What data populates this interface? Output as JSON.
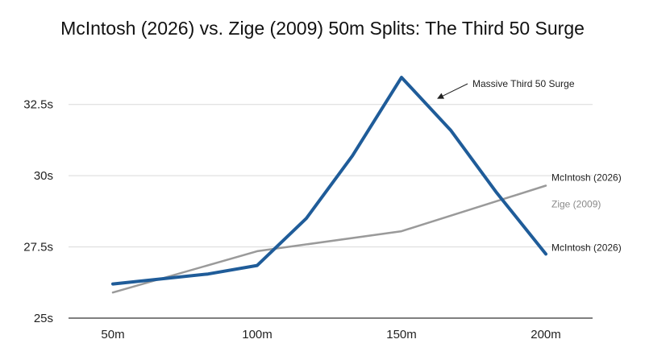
{
  "chart_data": {
    "type": "line",
    "title": "McIntosh (2026) vs. Zige (2009) 50m Splits: The Third 50 Surge",
    "xlabel": "",
    "ylabel": "",
    "x": [
      50,
      100,
      150,
      200
    ],
    "x_tick_labels": [
      "50m",
      "100m",
      "150m",
      "200m"
    ],
    "xlim": [
      50,
      200
    ],
    "y_ticks": [
      25,
      27.5,
      30,
      32.5
    ],
    "y_tick_labels": [
      "25s",
      "27.5s",
      "30s",
      "32.5s"
    ],
    "ylim": [
      25,
      34.5
    ],
    "grid": "horizontal",
    "series": [
      {
        "name": "McIntosh (2026)",
        "color": "#1f5c99",
        "points": [
          [
            50,
            26.2
          ],
          [
            83,
            26.55
          ],
          [
            100,
            26.85
          ],
          [
            117,
            28.5
          ],
          [
            133,
            30.7
          ],
          [
            150,
            33.45
          ],
          [
            167,
            31.6
          ],
          [
            183,
            29.4
          ],
          [
            200,
            27.25
          ]
        ]
      },
      {
        "name": "Zige (2009)",
        "color": "#9a9a9a",
        "points": [
          [
            50,
            25.9
          ],
          [
            100,
            27.35
          ],
          [
            150,
            28.05
          ],
          [
            200,
            29.65
          ]
        ]
      }
    ],
    "end_labels": [
      "McIntosh (2026)",
      "Zige (2009)",
      "McIntosh (2026)"
    ],
    "annotation": {
      "text": "Massive Third 50 Surge",
      "x": 150,
      "y": 33.45
    }
  }
}
